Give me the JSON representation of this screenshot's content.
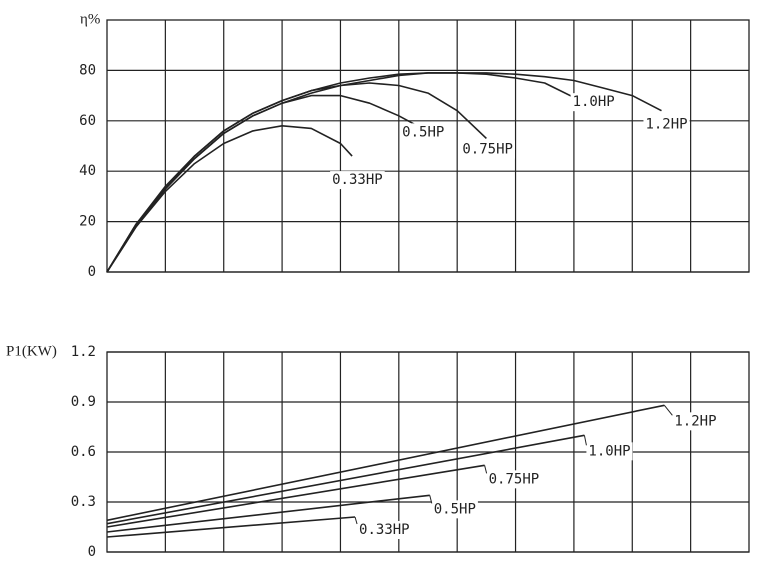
{
  "chart_data": [
    {
      "type": "line",
      "y_label": "η%",
      "ylim": [
        0,
        100
      ],
      "yticks": [
        0,
        20,
        40,
        60,
        80
      ],
      "xlim": [
        0,
        11
      ],
      "grid": true,
      "series": [
        {
          "name": "0.33HP",
          "color": "#222222",
          "x": [
            0,
            0.5,
            1,
            1.5,
            2,
            2.5,
            3,
            3.5,
            4,
            4.2
          ],
          "values": [
            0,
            18,
            32,
            43,
            51,
            56,
            58,
            57,
            51,
            46
          ]
        },
        {
          "name": "0.5HP",
          "color": "#222222",
          "x": [
            0,
            0.5,
            1,
            1.5,
            2,
            2.5,
            3,
            3.5,
            4,
            4.5,
            5,
            5.4
          ],
          "values": [
            0,
            19,
            33,
            45,
            55,
            62,
            67,
            70,
            70,
            67,
            62,
            57
          ]
        },
        {
          "name": "0.75HP",
          "color": "#222222",
          "x": [
            0,
            0.5,
            1,
            1.5,
            2,
            2.5,
            3,
            3.5,
            4,
            4.5,
            5,
            5.5,
            6,
            6.5
          ],
          "values": [
            0,
            19,
            33,
            46,
            56,
            63,
            68,
            72,
            74,
            75,
            74,
            71,
            64,
            53
          ]
        },
        {
          "name": "1.0HP",
          "color": "#222222",
          "x": [
            0,
            0.5,
            1,
            1.5,
            2,
            2.5,
            3,
            3.5,
            4,
            4.5,
            5,
            5.5,
            6,
            6.5,
            7,
            7.5,
            8.2
          ],
          "values": [
            0,
            19,
            34,
            46,
            56,
            63,
            68,
            72,
            75,
            77,
            78.5,
            79,
            79,
            78.5,
            77,
            75,
            67
          ]
        },
        {
          "name": "1.2HP",
          "color": "#222222",
          "x": [
            0,
            0.5,
            1,
            1.5,
            2,
            2.5,
            3,
            3.5,
            4,
            4.5,
            5,
            5.5,
            6,
            6.5,
            7,
            7.5,
            8,
            8.5,
            9,
            9.5
          ],
          "values": [
            0,
            18,
            33,
            45,
            55,
            62,
            67,
            71,
            74,
            76,
            78,
            79,
            79,
            79,
            78.5,
            77.5,
            76,
            73,
            70,
            64
          ]
        }
      ]
    },
    {
      "type": "line",
      "y_label": "P1(KW)",
      "ylim": [
        0,
        1.2
      ],
      "yticks": [
        0,
        0.3,
        0.6,
        0.9,
        1.2
      ],
      "xlim": [
        0,
        11
      ],
      "grid": true,
      "series": [
        {
          "name": "0.33HP",
          "color": "#222222",
          "x": [
            0,
            4.25
          ],
          "values": [
            0.09,
            0.21
          ]
        },
        {
          "name": "0.5HP",
          "color": "#222222",
          "x": [
            0,
            5.53
          ],
          "values": [
            0.12,
            0.34
          ]
        },
        {
          "name": "0.75HP",
          "color": "#222222",
          "x": [
            0,
            6.47
          ],
          "values": [
            0.15,
            0.52
          ]
        },
        {
          "name": "1.0HP",
          "color": "#222222",
          "x": [
            0,
            8.18
          ],
          "values": [
            0.17,
            0.7
          ]
        },
        {
          "name": "1.2HP",
          "color": "#222222",
          "x": [
            0,
            9.55
          ],
          "values": [
            0.19,
            0.88
          ]
        }
      ]
    }
  ]
}
